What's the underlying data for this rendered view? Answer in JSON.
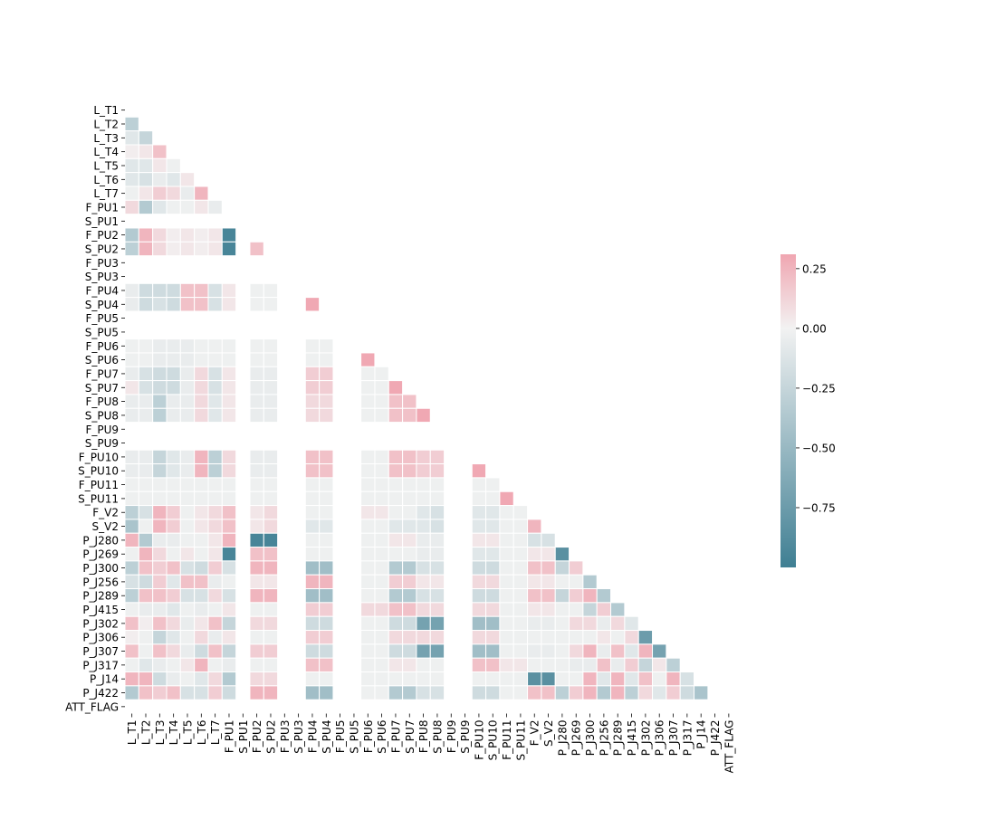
{
  "chart_data": {
    "type": "heatmap",
    "title": "",
    "xlabel": "",
    "ylabel": "",
    "variables": [
      "L_T1",
      "L_T2",
      "L_T3",
      "L_T4",
      "L_T5",
      "L_T6",
      "L_T7",
      "F_PU1",
      "S_PU1",
      "F_PU2",
      "S_PU2",
      "F_PU3",
      "S_PU3",
      "F_PU4",
      "S_PU4",
      "F_PU5",
      "S_PU5",
      "F_PU6",
      "S_PU6",
      "F_PU7",
      "S_PU7",
      "F_PU8",
      "S_PU8",
      "F_PU9",
      "S_PU9",
      "F_PU10",
      "S_PU10",
      "F_PU11",
      "S_PU11",
      "F_V2",
      "S_V2",
      "P_J280",
      "P_J269",
      "P_J300",
      "P_J256",
      "P_J289",
      "P_J415",
      "P_J302",
      "P_J306",
      "P_J307",
      "P_J317",
      "P_J14",
      "P_J422",
      "ATT_FLAG"
    ],
    "mask": "upper-triangle-and-diagonal",
    "constant_variables": [
      "S_PU1",
      "F_PU3",
      "S_PU3",
      "F_PU5",
      "S_PU5",
      "F_PU9",
      "S_PU9",
      "ATT_FLAG"
    ],
    "colorbar": {
      "min": -1.0,
      "max": 0.31,
      "center": 0,
      "ticks": [
        0.25,
        0.0,
        -0.25,
        -0.5,
        -0.75
      ],
      "tick_labels": [
        "0.25",
        "0.00",
        "−0.25",
        "−0.50",
        "−0.75"
      ],
      "colors": {
        "negative_end": "#3f7f93",
        "center": "#f2f2f2",
        "positive_end": "#f0a6b1"
      }
    },
    "grid_lines": true,
    "legend_position": "right",
    "note_on_values": "Values estimated from cell colours; rows listed in order starting at L_T2, each row gives correlations with all earlier variables.",
    "rows": [
      {
        "var": "L_T2",
        "values": [
          -0.3
        ]
      },
      {
        "var": "L_T3",
        "values": [
          -0.1,
          -0.25
        ]
      },
      {
        "var": "L_T4",
        "values": [
          0.02,
          0.05,
          0.2
        ]
      },
      {
        "var": "L_T5",
        "values": [
          -0.1,
          -0.1,
          0.05,
          -0.02
        ]
      },
      {
        "var": "L_T6",
        "values": [
          -0.1,
          -0.15,
          -0.05,
          -0.1,
          0.05
        ]
      },
      {
        "var": "L_T7",
        "values": [
          -0.02,
          0.05,
          0.15,
          0.1,
          -0.05,
          0.25
        ]
      },
      {
        "var": "F_PU1",
        "values": [
          0.1,
          -0.35,
          -0.1,
          -0.02,
          -0.02,
          0.05,
          -0.05
        ]
      },
      {
        "var": "S_PU1",
        "values": [
          0,
          0,
          0,
          0,
          0,
          0,
          0,
          0
        ]
      },
      {
        "var": "F_PU2",
        "values": [
          -0.35,
          0.25,
          0.1,
          0.02,
          0.05,
          0.02,
          0.05,
          -0.95,
          0
        ]
      },
      {
        "var": "S_PU2",
        "values": [
          -0.3,
          0.25,
          0.1,
          0.02,
          0.05,
          0.02,
          0.05,
          -0.95,
          0,
          0.2
        ]
      },
      {
        "var": "F_PU3",
        "values": [
          0,
          0,
          0,
          0,
          0,
          0,
          0,
          0,
          0,
          0,
          0
        ]
      },
      {
        "var": "S_PU3",
        "values": [
          0,
          0,
          0,
          0,
          0,
          0,
          0,
          0,
          0,
          0,
          0,
          0
        ]
      },
      {
        "var": "F_PU4",
        "values": [
          -0.05,
          -0.2,
          -0.2,
          -0.2,
          0.2,
          0.2,
          -0.15,
          0.05,
          0,
          -0.02,
          -0.02,
          0,
          0
        ]
      },
      {
        "var": "S_PU4",
        "values": [
          -0.05,
          -0.2,
          -0.15,
          -0.2,
          0.2,
          0.2,
          -0.15,
          0.05,
          0,
          -0.02,
          -0.02,
          0,
          0,
          0.3
        ]
      },
      {
        "var": "F_PU5",
        "values": [
          0,
          0,
          0,
          0,
          0,
          0,
          0,
          0,
          0,
          0,
          0,
          0,
          0,
          0,
          0
        ]
      },
      {
        "var": "S_PU5",
        "values": [
          0,
          0,
          0,
          0,
          0,
          0,
          0,
          0,
          0,
          0,
          0,
          0,
          0,
          0,
          0,
          0
        ]
      },
      {
        "var": "F_PU6",
        "values": [
          -0.02,
          -0.02,
          -0.05,
          -0.05,
          -0.05,
          -0.02,
          -0.02,
          -0.02,
          0,
          -0.02,
          -0.02,
          0,
          0,
          -0.02,
          -0.02,
          0,
          0
        ]
      },
      {
        "var": "S_PU6",
        "values": [
          -0.02,
          -0.02,
          -0.05,
          -0.05,
          -0.05,
          -0.02,
          -0.02,
          -0.02,
          0,
          -0.02,
          -0.02,
          0,
          0,
          -0.02,
          -0.02,
          0,
          0,
          0.3
        ]
      },
      {
        "var": "F_PU7",
        "values": [
          -0.05,
          -0.15,
          -0.2,
          -0.2,
          -0.05,
          0.1,
          -0.15,
          0.05,
          0,
          -0.05,
          -0.05,
          0,
          0,
          0.15,
          0.15,
          0,
          0,
          -0.02,
          -0.02
        ]
      },
      {
        "var": "S_PU7",
        "values": [
          0.05,
          -0.15,
          -0.2,
          -0.2,
          -0.05,
          0.1,
          -0.15,
          0.05,
          0,
          -0.05,
          -0.05,
          0,
          0,
          0.15,
          0.15,
          0,
          0,
          -0.02,
          -0.02,
          0.3
        ]
      },
      {
        "var": "F_PU8",
        "values": [
          -0.05,
          -0.05,
          -0.3,
          -0.05,
          -0.05,
          0.1,
          -0.1,
          0.05,
          0,
          -0.05,
          -0.05,
          0,
          0,
          0.1,
          0.1,
          0,
          0,
          -0.02,
          -0.02,
          0.2,
          0.2
        ]
      },
      {
        "var": "S_PU8",
        "values": [
          -0.05,
          -0.05,
          -0.3,
          -0.05,
          -0.05,
          0.1,
          -0.1,
          0.05,
          0,
          -0.05,
          -0.05,
          0,
          0,
          0.1,
          0.1,
          0,
          0,
          -0.02,
          -0.02,
          0.2,
          0.2,
          0.3
        ]
      },
      {
        "var": "F_PU9",
        "values": [
          0,
          0,
          0,
          0,
          0,
          0,
          0,
          0,
          0,
          0,
          0,
          0,
          0,
          0,
          0,
          0,
          0,
          0,
          0,
          0,
          0,
          0,
          0
        ]
      },
      {
        "var": "S_PU9",
        "values": [
          0,
          0,
          0,
          0,
          0,
          0,
          0,
          0,
          0,
          0,
          0,
          0,
          0,
          0,
          0,
          0,
          0,
          0,
          0,
          0,
          0,
          0,
          0,
          0
        ]
      },
      {
        "var": "F_PU10",
        "values": [
          -0.05,
          -0.05,
          -0.25,
          -0.1,
          -0.05,
          0.25,
          -0.3,
          0.1,
          0,
          -0.05,
          -0.05,
          0,
          0,
          0.2,
          0.2,
          0,
          0,
          -0.02,
          -0.02,
          0.2,
          0.2,
          0.15,
          0.15,
          0,
          0
        ]
      },
      {
        "var": "S_PU10",
        "values": [
          -0.05,
          -0.05,
          -0.25,
          -0.1,
          -0.05,
          0.25,
          -0.3,
          0.1,
          0,
          -0.05,
          -0.05,
          0,
          0,
          0.2,
          0.2,
          0,
          0,
          -0.02,
          -0.02,
          0.2,
          0.2,
          0.15,
          0.15,
          0,
          0,
          0.3
        ]
      },
      {
        "var": "F_PU11",
        "values": [
          -0.02,
          -0.02,
          -0.02,
          -0.02,
          -0.02,
          -0.02,
          -0.02,
          -0.02,
          0,
          -0.02,
          -0.02,
          0,
          0,
          -0.02,
          -0.02,
          0,
          0,
          -0.02,
          -0.02,
          -0.02,
          -0.02,
          -0.02,
          -0.02,
          0,
          0,
          -0.02,
          -0.02
        ]
      },
      {
        "var": "S_PU11",
        "values": [
          -0.02,
          -0.02,
          -0.02,
          -0.02,
          -0.02,
          -0.02,
          -0.02,
          -0.02,
          0,
          -0.02,
          -0.02,
          0,
          0,
          -0.02,
          -0.02,
          0,
          0,
          -0.02,
          -0.02,
          -0.02,
          -0.02,
          -0.02,
          -0.02,
          0,
          0,
          -0.02,
          -0.02,
          0.3
        ]
      },
      {
        "var": "F_V2",
        "values": [
          -0.3,
          -0.15,
          0.25,
          0.15,
          -0.02,
          0.05,
          0.1,
          0.2,
          0,
          0.05,
          0.1,
          0,
          0,
          -0.02,
          -0.02,
          0,
          0,
          0.05,
          0.05,
          -0.02,
          -0.02,
          -0.1,
          -0.15,
          0,
          0,
          -0.1,
          -0.1,
          -0.02,
          -0.02
        ]
      },
      {
        "var": "S_V2",
        "values": [
          -0.4,
          -0.02,
          0.25,
          0.15,
          -0.02,
          0.05,
          0.1,
          0.2,
          0,
          0.05,
          0.1,
          0,
          0,
          -0.1,
          -0.1,
          0,
          0,
          -0.02,
          -0.02,
          -0.1,
          -0.1,
          -0.1,
          -0.15,
          0,
          0,
          -0.1,
          -0.1,
          -0.02,
          -0.02,
          0.25
        ]
      },
      {
        "var": "P_J280",
        "values": [
          0.25,
          -0.35,
          -0.05,
          -0.05,
          -0.02,
          -0.02,
          0.05,
          0.25,
          0,
          -0.95,
          -0.95,
          0,
          0,
          -0.02,
          -0.02,
          0,
          0,
          -0.02,
          -0.02,
          0.05,
          0.05,
          -0.05,
          -0.05,
          0,
          0,
          0.05,
          0.05,
          -0.02,
          -0.02,
          -0.15,
          -0.15
        ]
      },
      {
        "var": "P_J269",
        "values": [
          -0.02,
          0.25,
          0.1,
          -0.02,
          0.05,
          -0.02,
          0.05,
          -0.95,
          0,
          0.2,
          0.2,
          0,
          0,
          -0.02,
          -0.02,
          0,
          0,
          -0.02,
          -0.02,
          -0.02,
          -0.02,
          -0.05,
          -0.05,
          0,
          0,
          -0.1,
          -0.1,
          -0.02,
          -0.02,
          0.05,
          0.05,
          -0.85
        ]
      },
      {
        "var": "P_J300",
        "values": [
          -0.3,
          0.2,
          0.15,
          0.2,
          -0.15,
          -0.2,
          0.15,
          -0.15,
          0,
          0.25,
          0.25,
          0,
          0,
          -0.45,
          -0.45,
          0,
          0,
          -0.02,
          -0.02,
          -0.35,
          -0.35,
          -0.15,
          -0.15,
          0,
          0,
          -0.2,
          -0.2,
          -0.02,
          -0.02,
          0.2,
          0.2,
          -0.25,
          0.15
        ]
      },
      {
        "var": "P_J256",
        "values": [
          -0.15,
          -0.2,
          0.15,
          -0.1,
          0.2,
          0.2,
          -0.05,
          -0.02,
          0,
          0.05,
          0.05,
          0,
          0,
          0.25,
          0.25,
          0,
          0,
          -0.02,
          -0.02,
          0.15,
          0.15,
          0.05,
          0.05,
          0,
          0,
          0.1,
          0.1,
          -0.02,
          -0.02,
          0.05,
          0.05,
          -0.02,
          -0.02,
          -0.35
        ]
      },
      {
        "var": "P_J289",
        "values": [
          -0.3,
          0.2,
          0.2,
          0.15,
          -0.15,
          -0.15,
          0.1,
          -0.15,
          0,
          0.25,
          0.25,
          0,
          0,
          -0.45,
          -0.45,
          0,
          0,
          -0.02,
          -0.02,
          -0.35,
          -0.35,
          -0.15,
          -0.15,
          0,
          0,
          -0.2,
          -0.2,
          -0.02,
          -0.02,
          0.2,
          0.2,
          -0.25,
          0.15,
          0.25,
          -0.35
        ]
      },
      {
        "var": "P_J415",
        "values": [
          -0.02,
          -0.05,
          -0.05,
          -0.1,
          -0.02,
          -0.05,
          -0.02,
          0.05,
          0,
          -0.02,
          -0.02,
          0,
          0,
          0.15,
          0.15,
          0,
          0,
          0.1,
          0.1,
          0.2,
          0.2,
          0.1,
          0.1,
          0,
          0,
          0.1,
          0.1,
          -0.02,
          -0.02,
          0.05,
          0.05,
          -0.02,
          -0.02,
          -0.25,
          0.15,
          -0.35
        ]
      },
      {
        "var": "P_J302",
        "values": [
          0.2,
          0.02,
          0.2,
          0.1,
          -0.05,
          0.05,
          0.2,
          -0.25,
          0,
          0.1,
          0.1,
          0,
          0,
          -0.2,
          -0.2,
          0,
          0,
          -0.02,
          -0.02,
          -0.2,
          -0.2,
          -0.7,
          -0.7,
          0,
          0,
          -0.45,
          -0.45,
          -0.02,
          -0.02,
          -0.05,
          -0.05,
          -0.02,
          0.1,
          0.1,
          -0.05,
          0.1,
          -0.1
        ]
      },
      {
        "var": "P_J306",
        "values": [
          0.02,
          -0.02,
          -0.25,
          -0.1,
          -0.02,
          0.1,
          -0.05,
          0.05,
          0,
          -0.02,
          -0.02,
          0,
          0,
          0.15,
          0.15,
          0,
          0,
          -0.02,
          -0.02,
          0.1,
          0.1,
          0.1,
          0.1,
          0,
          0,
          0.1,
          0.1,
          -0.02,
          -0.02,
          -0.02,
          -0.02,
          -0.02,
          -0.02,
          -0.02,
          0.05,
          -0.02,
          0.1,
          -0.75
        ]
      },
      {
        "var": "P_J307",
        "values": [
          0.2,
          -0.02,
          0.2,
          0.1,
          -0.05,
          -0.2,
          0.2,
          -0.25,
          0,
          0.15,
          0.15,
          0,
          0,
          -0.2,
          -0.2,
          0,
          0,
          -0.02,
          -0.02,
          -0.2,
          -0.2,
          -0.7,
          -0.7,
          0,
          0,
          -0.45,
          -0.45,
          -0.02,
          -0.02,
          -0.05,
          -0.05,
          -0.02,
          0.1,
          0.25,
          -0.05,
          0.2,
          -0.1,
          0.25,
          -0.7
        ]
      },
      {
        "var": "P_J317",
        "values": [
          -0.02,
          -0.1,
          -0.05,
          -0.02,
          0.05,
          0.25,
          -0.02,
          -0.05,
          0,
          -0.02,
          -0.02,
          0,
          0,
          0.2,
          0.2,
          0,
          0,
          -0.02,
          -0.02,
          0.05,
          0.05,
          -0.02,
          -0.02,
          0,
          0,
          0.2,
          0.2,
          0.05,
          0.05,
          -0.02,
          -0.02,
          -0.02,
          -0.05,
          -0.05,
          0.2,
          -0.05,
          0.15,
          -0.25,
          0.05,
          -0.3
        ]
      },
      {
        "var": "P_J14",
        "values": [
          0.25,
          0.25,
          -0.2,
          -0.05,
          -0.02,
          -0.1,
          0.1,
          -0.35,
          0,
          0.1,
          0.1,
          0,
          0,
          -0.02,
          -0.02,
          0,
          0,
          -0.02,
          -0.02,
          -0.02,
          -0.02,
          -0.02,
          -0.02,
          0,
          0,
          -0.02,
          -0.02,
          -0.02,
          -0.02,
          -0.85,
          -0.85,
          -0.02,
          -0.02,
          0.25,
          -0.1,
          0.25,
          -0.1,
          0.2,
          -0.02,
          0.25,
          -0.15
        ]
      },
      {
        "var": "P_J422",
        "values": [
          -0.35,
          0.2,
          0.15,
          0.2,
          -0.15,
          -0.15,
          0.15,
          -0.2,
          0,
          0.25,
          0.25,
          0,
          0,
          -0.45,
          -0.45,
          0,
          0,
          -0.02,
          -0.02,
          -0.35,
          -0.35,
          -0.15,
          -0.15,
          0,
          0,
          -0.2,
          -0.2,
          -0.02,
          -0.02,
          0.2,
          0.2,
          -0.3,
          0.15,
          0.25,
          -0.35,
          0.25,
          -0.3,
          0.1,
          -0.1,
          0.15,
          -0.2,
          -0.4
        ]
      },
      {
        "var": "ATT_FLAG",
        "values": [
          0,
          0,
          0,
          0,
          0,
          0,
          0,
          0,
          0,
          0,
          0,
          0,
          0,
          0,
          0,
          0,
          0,
          0,
          0,
          0,
          0,
          0,
          0,
          0,
          0,
          0,
          0,
          0,
          0,
          0,
          0,
          0,
          0,
          0,
          0,
          0,
          0,
          0,
          0,
          0,
          0,
          0,
          0
        ]
      }
    ]
  }
}
